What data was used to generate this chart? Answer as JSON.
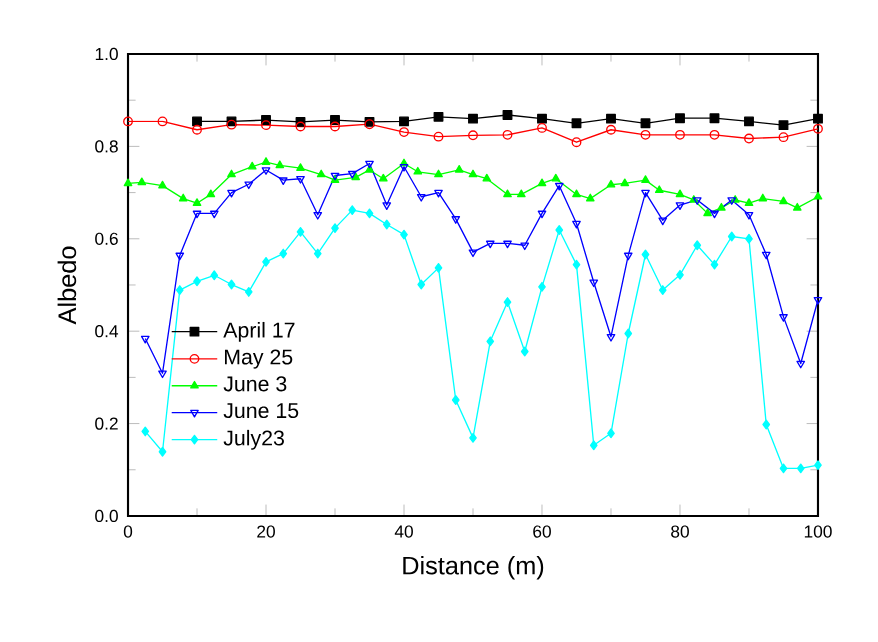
{
  "chart_data": {
    "type": "line",
    "xlabel": "Distance (m)",
    "ylabel": "Albedo",
    "xlim": [
      0,
      100
    ],
    "xticks": [
      0,
      20,
      40,
      60,
      80,
      100
    ],
    "ylim": [
      0,
      1
    ],
    "yticks": [
      {
        "value": 0,
        "label": "0.0"
      },
      {
        "value": 0.2,
        "label": "0.2"
      },
      {
        "value": 0.4,
        "label": "0.4"
      },
      {
        "value": 0.6,
        "label": "0.6"
      },
      {
        "value": 0.8,
        "label": "0.8"
      },
      {
        "value": 1,
        "label": "1.0"
      }
    ],
    "grid": false,
    "legend": "bottom left",
    "line_style": "solid",
    "series": [
      {
        "name": "April 17",
        "color": "#000000",
        "marker": "square",
        "x": [
          10,
          15,
          20,
          25,
          30,
          35,
          40,
          45,
          50,
          55,
          60,
          65,
          70,
          75,
          80,
          85,
          90,
          95,
          100
        ],
        "values": [
          0.854,
          0.854,
          0.857,
          0.853,
          0.857,
          0.853,
          0.854,
          0.864,
          0.86,
          0.868,
          0.86,
          0.85,
          0.86,
          0.85,
          0.861,
          0.861,
          0.854,
          0.846,
          0.86
        ]
      },
      {
        "name": "May 25",
        "color": "#ff0000",
        "marker": "circle",
        "x": [
          0,
          5,
          10,
          15,
          20,
          25,
          30,
          35,
          40,
          45,
          50,
          55,
          60,
          65,
          70,
          75,
          80,
          85,
          90,
          95,
          100
        ],
        "values": [
          0.854,
          0.854,
          0.836,
          0.847,
          0.846,
          0.843,
          0.843,
          0.848,
          0.831,
          0.821,
          0.824,
          0.825,
          0.84,
          0.809,
          0.836,
          0.825,
          0.825,
          0.825,
          0.817,
          0.82,
          0.838
        ]
      },
      {
        "name": "June 3",
        "color": "#00ff00",
        "marker": "triangle",
        "x": [
          0,
          2,
          5,
          8,
          10,
          12,
          15,
          18,
          20,
          22,
          25,
          28,
          30,
          33,
          35,
          37,
          40,
          42,
          45,
          48,
          50,
          52,
          55,
          57,
          60,
          62,
          65,
          67,
          70,
          72,
          75,
          77,
          80,
          82,
          84,
          86,
          88,
          90,
          92,
          95,
          97,
          100
        ],
        "values": [
          0.72,
          0.722,
          0.715,
          0.687,
          0.677,
          0.696,
          0.739,
          0.756,
          0.766,
          0.759,
          0.753,
          0.739,
          0.727,
          0.733,
          0.749,
          0.73,
          0.763,
          0.745,
          0.739,
          0.749,
          0.739,
          0.73,
          0.696,
          0.696,
          0.72,
          0.73,
          0.696,
          0.687,
          0.717,
          0.72,
          0.727,
          0.705,
          0.696,
          0.684,
          0.655,
          0.667,
          0.684,
          0.677,
          0.687,
          0.681,
          0.667,
          0.691
        ]
      },
      {
        "name": "June 15",
        "color": "#0000ff",
        "marker": "triangle-down",
        "x": [
          2.5,
          5,
          7.5,
          10,
          12.5,
          15,
          17.5,
          20,
          22.5,
          25,
          27.5,
          30,
          32.5,
          35,
          37.5,
          40,
          42.5,
          45,
          47.5,
          50,
          52.5,
          55,
          57.5,
          60,
          62.5,
          65,
          67.5,
          70,
          72.5,
          75,
          77.5,
          80,
          82.5,
          85,
          87.5,
          90,
          92.5,
          95,
          97.5,
          100
        ],
        "values": [
          0.384,
          0.309,
          0.564,
          0.655,
          0.655,
          0.7,
          0.718,
          0.749,
          0.727,
          0.73,
          0.652,
          0.737,
          0.741,
          0.763,
          0.673,
          0.756,
          0.691,
          0.7,
          0.643,
          0.571,
          0.59,
          0.59,
          0.586,
          0.655,
          0.715,
          0.633,
          0.506,
          0.388,
          0.564,
          0.7,
          0.64,
          0.673,
          0.684,
          0.655,
          0.684,
          0.652,
          0.566,
          0.431,
          0.33,
          0.468
        ]
      },
      {
        "name": "July23",
        "color": "#00ffff",
        "marker": "diamond",
        "x": [
          2.5,
          5,
          7.5,
          10,
          12.5,
          15,
          17.5,
          20,
          22.5,
          25,
          27.5,
          30,
          32.5,
          35,
          37.5,
          40,
          42.5,
          45,
          47.5,
          50,
          52.5,
          55,
          57.5,
          60,
          62.5,
          65,
          67.5,
          70,
          72.5,
          75,
          77.5,
          80,
          82.5,
          85,
          87.5,
          90,
          92.5,
          95,
          97.5,
          100
        ],
        "values": [
          0.183,
          0.139,
          0.489,
          0.508,
          0.521,
          0.501,
          0.485,
          0.55,
          0.568,
          0.615,
          0.568,
          0.623,
          0.662,
          0.655,
          0.631,
          0.609,
          0.501,
          0.537,
          0.251,
          0.169,
          0.378,
          0.463,
          0.356,
          0.496,
          0.619,
          0.544,
          0.153,
          0.179,
          0.395,
          0.566,
          0.489,
          0.522,
          0.586,
          0.544,
          0.605,
          0.6,
          0.198,
          0.103,
          0.103,
          0.11
        ]
      }
    ]
  }
}
